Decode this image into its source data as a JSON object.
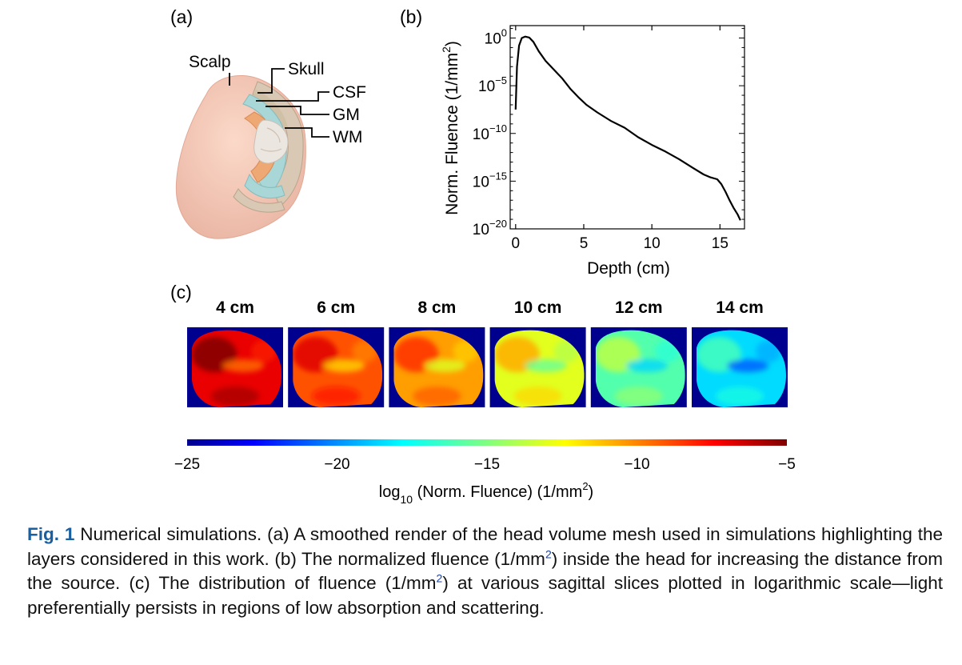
{
  "panels": {
    "a": {
      "label": "(a)",
      "layers": [
        "Scalp",
        "Skull",
        "CSF",
        "GM",
        "WM"
      ]
    },
    "b": {
      "label": "(b)"
    },
    "c": {
      "label": "(c)",
      "slices": [
        {
          "label": "4 cm",
          "level": -7
        },
        {
          "label": "6 cm",
          "level": -9
        },
        {
          "label": "8 cm",
          "level": -10.5
        },
        {
          "label": "10 cm",
          "level": -13
        },
        {
          "label": "12 cm",
          "level": -16
        },
        {
          "label": "14 cm",
          "level": -18.5
        }
      ],
      "colorbar": {
        "min": -25,
        "max": -5,
        "ticks": [
          "−25",
          "−20",
          "−15",
          "−10",
          "−5"
        ],
        "tick_values": [
          -25,
          -20,
          -15,
          -10,
          -5
        ],
        "label_prefix": "log",
        "label_sub": "10",
        "label_mid": " (Norm. Fluence) (1/mm",
        "label_sup": "2",
        "label_suffix": ")"
      }
    }
  },
  "chart_data": {
    "type": "line",
    "title": "",
    "xlabel": "Depth (cm)",
    "ylabel_main": "Norm. Fluence (1/mm",
    "ylabel_sup": "2",
    "ylabel_end": ")",
    "yscale": "log10",
    "xlim": [
      -0.4,
      16.8
    ],
    "ylim_exp": [
      -20,
      1.3
    ],
    "x_ticks": [
      0,
      5,
      10,
      15
    ],
    "x_tick_labels": [
      "0",
      "5",
      "10",
      "15"
    ],
    "y_tick_exps": [
      0,
      -5,
      -10,
      -15,
      -20
    ],
    "y_tick_base": "10",
    "y_tick_sups": [
      "0",
      "−5",
      "−10",
      "−15",
      "−20"
    ],
    "series": [
      {
        "name": "Normalized fluence",
        "x": [
          0.0,
          0.1,
          0.25,
          0.45,
          0.7,
          1.0,
          1.3,
          1.7,
          2.2,
          2.8,
          3.4,
          4.0,
          4.6,
          5.2,
          6.0,
          7.0,
          8.0,
          9.0,
          10.0,
          11.0,
          12.0,
          13.0,
          13.8,
          14.3,
          14.8,
          15.1,
          15.4,
          15.7,
          16.0,
          16.3,
          16.5
        ],
        "log10_y": [
          -7.5,
          -3.0,
          -0.8,
          0.0,
          0.15,
          0.05,
          -0.4,
          -1.4,
          -2.4,
          -3.3,
          -4.2,
          -5.3,
          -6.2,
          -7.0,
          -7.8,
          -8.7,
          -9.4,
          -10.4,
          -11.2,
          -11.9,
          -12.7,
          -13.6,
          -14.3,
          -14.6,
          -14.8,
          -15.3,
          -16.1,
          -17.0,
          -17.8,
          -18.5,
          -19.1
        ]
      }
    ]
  },
  "caption": {
    "fig_label": "Fig. 1",
    "part1": " Numerical simulations. (a) A smoothed render of the head volume mesh used in simulations highlighting the layers considered in this work. (b) The normalized fluence (1/mm",
    "sup1": "2",
    "part2": ") inside the head for increasing the distance from the source. (c) The distribution of fluence (1/mm",
    "sup2": "2",
    "part3": ") at various sagittal slices plotted in logarithmic scale—light preferentially persists in regions of low absorption and scattering."
  }
}
